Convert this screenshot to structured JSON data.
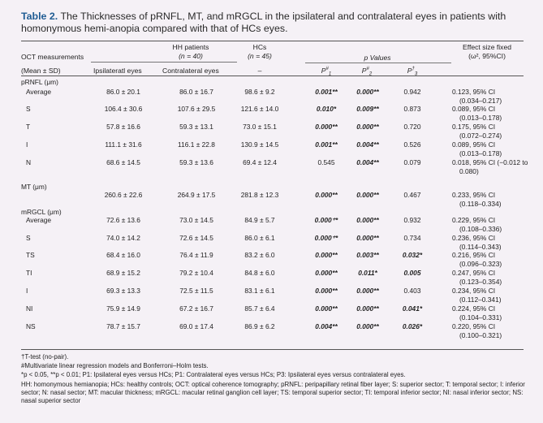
{
  "caption": {
    "label": "Table 2.",
    "text": "The Thicknesses of pRNFL, MT, and mRGCL in the ipsilateral and contralateral eyes in patients with homonymous hemi-anopia compared with that of HCs eyes."
  },
  "headers": {
    "oct": "OCT measurements",
    "mean_sd": "(Mean ± SD)",
    "hh_patients": "HH patients",
    "hh_n": "(n = 40)",
    "ipsi": "Ipsilateratl eyes",
    "contra": "Contralateral eyes",
    "hcs": "HCs",
    "hcs_n": "(n = 45)",
    "dash": "–",
    "p_values": "p Values",
    "p1": "P#1",
    "p2": "P#2",
    "p3": "P†3",
    "effect_size": "Effect size fixed",
    "effect_size2": "(ω², 95%CI)"
  },
  "sections": {
    "prnfl": "pRNFL (μm)",
    "mt": "MT (μm)",
    "mrgcl": "mRGCL (μm)"
  },
  "rows": [
    {
      "label": "Average",
      "ipsi": "86.0 ± 20.1",
      "contra": "86.0 ± 16.7",
      "hcs": "98.6 ± 9.2",
      "p1": "0.001*​*",
      "p1b": true,
      "p2": "0.000*​*",
      "p2b": true,
      "p3": "0.942",
      "p3b": false,
      "es1": "0.123, 95% CI",
      "es2": "(0.034–0.217)"
    },
    {
      "label": "S",
      "ipsi": "106.4 ± 30.6",
      "contra": "107.6 ± 29.5",
      "hcs": "121.6 ± 14.0",
      "p1": "0.010*",
      "p1b": true,
      "p2": "0.009*​*",
      "p2b": true,
      "p3": "0.873",
      "p3b": false,
      "es1": "0.089, 95% CI",
      "es2": "(0.013–0.178)"
    },
    {
      "label": "T",
      "ipsi": "57.8 ± 16.6",
      "contra": "59.3 ± 13.1",
      "hcs": "73.0 ± 15.1",
      "p1": "0.000*​*",
      "p1b": true,
      "p2": "0.000*​*",
      "p2b": true,
      "p3": "0.720",
      "p3b": false,
      "es1": "0.175, 95% CI",
      "es2": "(0.072–0.274)"
    },
    {
      "label": "I",
      "ipsi": "111.1 ± 31.6",
      "contra": "116.1 ± 22.8",
      "hcs": "130.9 ± 14.5",
      "p1": "0.001*​*",
      "p1b": true,
      "p2": "0.004*​*",
      "p2b": true,
      "p3": "0.526",
      "p3b": false,
      "es1": "0.089, 95% CI",
      "es2": "(0.013–0.178)"
    },
    {
      "label": "N",
      "ipsi": "68.6 ± 14.5",
      "contra": "59.3 ± 13.6",
      "hcs": "69.4 ± 12.4",
      "p1": "0.545",
      "p1b": false,
      "p2": "0.004*​*",
      "p2b": true,
      "p3": "0.079",
      "p3b": false,
      "es1": "0.018, 95% CI (−0.012 to",
      "es2": "0.080)"
    },
    {
      "label": "",
      "ipsi": "260.6 ± 22.6",
      "contra": "264.9 ± 17.5",
      "hcs": "281.8 ± 12.3",
      "p1": "0.000*​*",
      "p1b": true,
      "p2": "0.000*​*",
      "p2b": true,
      "p3": "0.467",
      "p3b": false,
      "es1": "0.233, 95% CI",
      "es2": "(0.118–0.334)"
    },
    {
      "label": "Average",
      "ipsi": "72.6 ± 13.6",
      "contra": "73.0 ± 14.5",
      "hcs": "84.9 ± 5.7",
      "p1": "0.000⁺*",
      "p1b": true,
      "p2": "0.000*​*",
      "p2b": true,
      "p3": "0.932",
      "p3b": false,
      "es1": "0.229, 95% CI",
      "es2": "(0.108–0.336)"
    },
    {
      "label": "S",
      "ipsi": "74.0 ± 14.2",
      "contra": "72.6 ± 14.5",
      "hcs": "86.0 ± 6.1",
      "p1": "0.000⁺*",
      "p1b": true,
      "p2": "0.000*​*",
      "p2b": true,
      "p3": "0.734",
      "p3b": false,
      "es1": "0.236, 95% CI",
      "es2": "(0.114–0.343)"
    },
    {
      "label": "TS",
      "ipsi": "68.4 ± 16.0",
      "contra": "76.4 ± 11.9",
      "hcs": "83.2 ± 6.0",
      "p1": "0.000*​*",
      "p1b": true,
      "p2": "0.003*​*",
      "p2b": true,
      "p3": "0.032*",
      "p3b": true,
      "es1": "0.216, 95% CI",
      "es2": "(0.096–0.323)"
    },
    {
      "label": "TI",
      "ipsi": "68.9 ± 15.2",
      "contra": "79.2 ± 10.4",
      "hcs": "84.8 ± 6.0",
      "p1": "0.000*​*",
      "p1b": true,
      "p2": "0.011*",
      "p2b": true,
      "p3": "0.005",
      "p3b": true,
      "es1": "0.247, 95% CI",
      "es2": "(0.123–0.354)"
    },
    {
      "label": "I",
      "ipsi": "69.3 ± 13.3",
      "contra": "72.5 ± 11.5",
      "hcs": "83.1 ± 6.1",
      "p1": "0.000*​*",
      "p1b": true,
      "p2": "0.000*​*",
      "p2b": true,
      "p3": "0.403",
      "p3b": false,
      "es1": "0.234, 95% CI",
      "es2": "(0.112–0.341)"
    },
    {
      "label": "NI",
      "ipsi": "75.9 ± 14.9",
      "contra": "67.2 ± 16.7",
      "hcs": "85.7 ± 6.4",
      "p1": "0.000*​*",
      "p1b": true,
      "p2": "0.000*​*",
      "p2b": true,
      "p3": "0.041*",
      "p3b": true,
      "es1": "0.224, 95% CI",
      "es2": "(0.104–0.331)"
    },
    {
      "label": "NS",
      "ipsi": "78.7 ± 15.7",
      "contra": "69.0 ± 17.4",
      "hcs": "86.9 ± 6.2",
      "p1": "0.004*​*",
      "p1b": true,
      "p2": "0.000*​*",
      "p2b": true,
      "p3": "0.026*",
      "p3b": true,
      "es1": "0.220, 95% CI",
      "es2": "(0.100–0.321)"
    }
  ],
  "footnotes": [
    "†T-test (no-pair).",
    "#Multivariate linear regression models and Bonferroni–Holm tests.",
    "*p < 0.05, **p < 0.01; P1: Ipsilateral eyes versus HCs; P1: Contralateral eyes versus HCs; P3: Ipsilateral eyes versus contralateral eyes.",
    "HH: homonymous hemianopia; HCs: healthy controls; OCT: optical coherence tomography; pRNFL: peripapillary retinal fiber layer; S: superior sector; T: temporal sector; I: inferior sector; N: nasal sector; MT: macular thickness; mRGCL: macular retinal ganglion cell layer; TS: temporal superior sector; TI: temporal inferior sector; NI: nasal inferior sector; NS: nasal superior sector"
  ]
}
